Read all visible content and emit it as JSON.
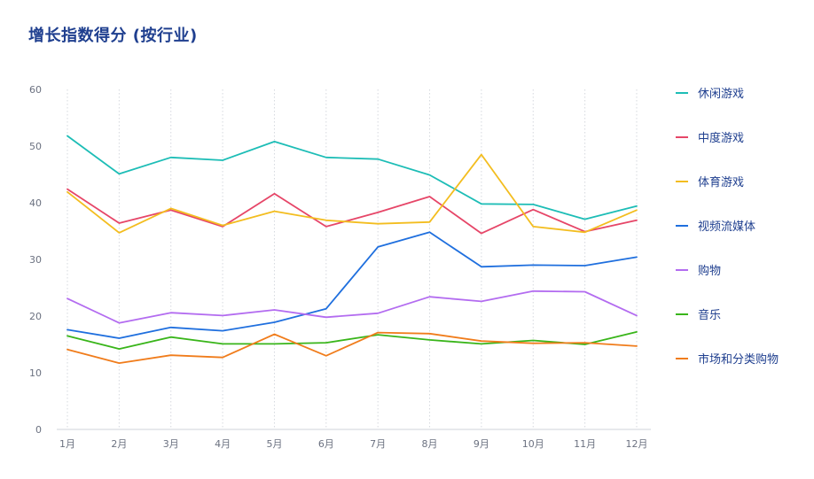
{
  "title": "增长指数得分 (按行业)",
  "chart_data": {
    "type": "line",
    "title": "增长指数得分 (按行业)",
    "categories": [
      "1月",
      "2月",
      "3月",
      "4月",
      "5月",
      "6月",
      "7月",
      "8月",
      "9月",
      "10月",
      "11月",
      "12月"
    ],
    "ylim": [
      0,
      60
    ],
    "yticks": [
      0,
      10,
      20,
      30,
      40,
      50,
      60
    ],
    "grid": "vertical-dotted",
    "legend": "right",
    "series": [
      {
        "name": "休闲游戏",
        "color": "#1dbdb6",
        "values": [
          51.8,
          45.1,
          48.0,
          47.5,
          50.8,
          48.0,
          47.7,
          44.9,
          39.8,
          39.7,
          37.1,
          39.4
        ]
      },
      {
        "name": "中度游戏",
        "color": "#e64668",
        "values": [
          42.4,
          36.4,
          38.7,
          35.8,
          41.6,
          35.8,
          38.3,
          41.1,
          34.6,
          38.8,
          34.9,
          36.9
        ]
      },
      {
        "name": "体育游戏",
        "color": "#f3bd1f",
        "values": [
          41.9,
          34.7,
          39.0,
          36.0,
          38.5,
          36.9,
          36.3,
          36.6,
          48.5,
          35.8,
          34.8,
          38.7
        ]
      },
      {
        "name": "视频流媒体",
        "color": "#1f6fde",
        "values": [
          17.6,
          16.1,
          18.0,
          17.4,
          18.9,
          21.3,
          32.2,
          34.8,
          28.7,
          29.0,
          28.9,
          30.4
        ]
      },
      {
        "name": "购物",
        "color": "#b36cf0",
        "values": [
          23.1,
          18.8,
          20.6,
          20.1,
          21.1,
          19.8,
          20.5,
          23.4,
          22.6,
          24.4,
          24.3,
          20.1
        ]
      },
      {
        "name": "音乐",
        "color": "#39b51a",
        "values": [
          16.5,
          14.2,
          16.3,
          15.1,
          15.1,
          15.3,
          16.7,
          15.8,
          15.1,
          15.7,
          15.0,
          17.2
        ]
      },
      {
        "name": "市场和分类购物",
        "color": "#f07c1b",
        "values": [
          14.1,
          11.7,
          13.1,
          12.7,
          16.8,
          13.0,
          17.1,
          16.9,
          15.6,
          15.2,
          15.3,
          14.7
        ]
      }
    ]
  }
}
